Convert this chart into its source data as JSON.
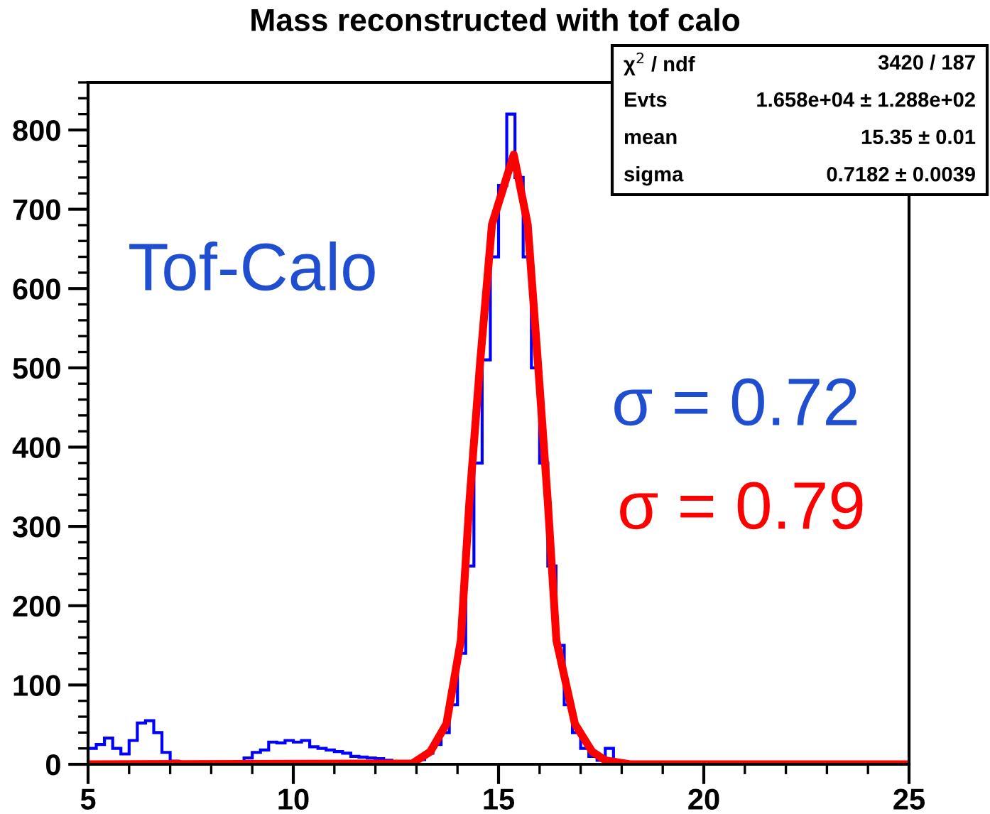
{
  "chart_data": {
    "type": "histogram",
    "title": "Mass reconstructed with tof calo",
    "bins": [
      5.0,
      5.2,
      5.4,
      5.6,
      5.8,
      6.0,
      6.2,
      6.4,
      6.6,
      6.8,
      7.0,
      7.2,
      7.4,
      7.6,
      7.8,
      8.0,
      8.2,
      8.4,
      8.6,
      8.8,
      9.0,
      9.2,
      9.4,
      9.6,
      9.8,
      10.0,
      10.2,
      10.4,
      10.6,
      10.8,
      11.0,
      11.2,
      11.4,
      11.6,
      11.8,
      12.0,
      12.2,
      12.4,
      12.6,
      12.8,
      13.0,
      13.2,
      13.4,
      13.6,
      13.8,
      14.0,
      14.2,
      14.4,
      14.6,
      14.8,
      15.0,
      15.2,
      15.4,
      15.6,
      15.8,
      16.0,
      16.2,
      16.4,
      16.6,
      16.8,
      17.0,
      17.2,
      17.4,
      17.6,
      17.8,
      18.0,
      18.2,
      18.4,
      18.6,
      18.8,
      19.0,
      19.2,
      19.4,
      19.6,
      19.8,
      20.0,
      20.2,
      20.4,
      20.6,
      20.8,
      21.0,
      21.2,
      21.4,
      21.6,
      21.8,
      22.0,
      22.2,
      22.4,
      22.6,
      22.8,
      23.0,
      23.2,
      23.4,
      23.6,
      23.8,
      24.0,
      24.2,
      24.4,
      24.6,
      24.8,
      25.0
    ],
    "series": [
      {
        "color": "#0000ff",
        "values": [
          20,
          25,
          33,
          20,
          13,
          30,
          52,
          55,
          40,
          15,
          4,
          1,
          0,
          0,
          0,
          0,
          0,
          0,
          3,
          8,
          15,
          18,
          28,
          27,
          30,
          28,
          30,
          22,
          20,
          18,
          16,
          14,
          10,
          9,
          8,
          7,
          5,
          2,
          1,
          3,
          6,
          14,
          25,
          40,
          75,
          140,
          250,
          380,
          510,
          640,
          730,
          820,
          740,
          640,
          500,
          380,
          250,
          150,
          75,
          40,
          20,
          10,
          5,
          20,
          3,
          0,
          0,
          0,
          0,
          0,
          0,
          0,
          0,
          0,
          0,
          0,
          0,
          0,
          0,
          0,
          0,
          0,
          0,
          0,
          0,
          0,
          0,
          0,
          0,
          0,
          0,
          0,
          0,
          0,
          0,
          0,
          0,
          0,
          0,
          0
        ]
      },
      {
        "type": "line",
        "color": "#ff0000",
        "x": [
          5,
          12.9,
          13.34,
          13.73,
          14.08,
          14.29,
          14.55,
          14.84,
          15.37,
          15.71,
          15.96,
          16.2,
          16.41,
          16.86,
          17.28,
          17.6,
          18.2,
          25
        ],
        "values": [
          0,
          1,
          16,
          51,
          156,
          331,
          506,
          681,
          769,
          681,
          506,
          331,
          156,
          51,
          16,
          5,
          0,
          0
        ]
      }
    ],
    "xlim": [
      5,
      25
    ],
    "ylim": [
      0,
      860
    ],
    "xticks": [
      5,
      10,
      15,
      20,
      25
    ],
    "yticks": [
      0,
      100,
      200,
      300,
      400,
      500,
      600,
      700,
      800
    ],
    "grid": false,
    "legend": false,
    "annotations": [
      "Tof-Calo",
      "σ = 0.72",
      "σ = 0.79",
      "χ$^{2}$ / ndf",
      "3420 / 187",
      "Evts",
      "1.658e+04 ± 1.288e+02",
      "mean",
      "15.35 ± 0.01",
      "sigma",
      "0.7182 ± 0.0039"
    ]
  }
}
